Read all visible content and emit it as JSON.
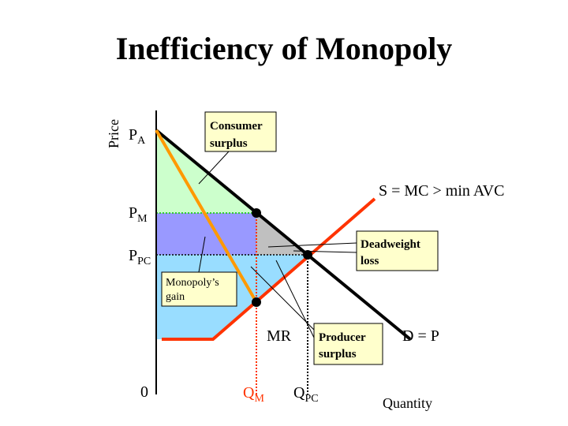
{
  "title": "Inefficiency of Monopoly",
  "axes": {
    "y_label": "Price",
    "x_label": "Quantity",
    "origin": "0"
  },
  "price_labels": {
    "pa": {
      "main": "P",
      "sub": "A"
    },
    "pm": {
      "main": "P",
      "sub": "M"
    },
    "ppc": {
      "main": "P",
      "sub": "PC"
    }
  },
  "quantity_labels": {
    "qm": {
      "main": "Q",
      "sub": "M"
    },
    "qpc": {
      "main": "Q",
      "sub": "PC"
    }
  },
  "curves": {
    "supply": "S = MC > min AVC",
    "mr": "MR",
    "demand": "D = P"
  },
  "callouts": {
    "consumer_surplus": [
      "Consumer",
      "surplus"
    ],
    "deadweight_loss": [
      "Deadweight",
      "loss"
    ],
    "monopoly_gain": [
      "Monopoly’s",
      "gain"
    ],
    "producer_surplus": [
      "Producer",
      "surplus"
    ]
  }
}
